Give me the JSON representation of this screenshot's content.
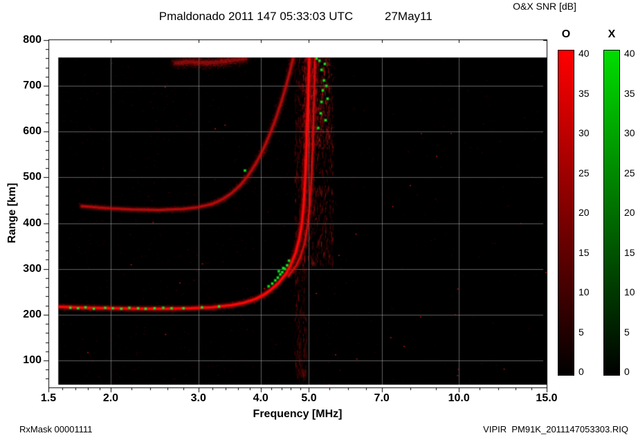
{
  "header": {
    "title": "Pmaldonado 2011 147 05:33:03 UTC",
    "date": "27May11",
    "colorbar_title": "O&X SNR [dB]"
  },
  "footer": {
    "rx_mask": "RxMask 00001111",
    "file": "VIPIR  PM91K_2011147053303.RIQ"
  },
  "chart_data": {
    "type": "heatmap",
    "title": "Pmaldonado 2011 147 05:33:03 UTC",
    "subtitle_date": "27May11",
    "xlabel": "Frequency [MHz]",
    "ylabel": "Range [km]",
    "x_scale": "log",
    "xlim": [
      1.5,
      15.0
    ],
    "ylim": [
      41,
      801
    ],
    "grid": true,
    "x_ticks": [
      "1.5",
      "2.0",
      "3.0",
      "4.0",
      "5.0",
      "7.0",
      "10.0",
      "15.0"
    ],
    "x_minor_ticks": [
      1.6,
      1.7,
      1.8,
      1.9,
      2.2,
      2.4,
      2.6,
      2.8,
      3.2,
      3.4,
      3.6,
      3.8,
      4.2,
      4.4,
      4.6,
      4.8,
      5.5,
      6.0,
      6.5,
      8.0,
      9.0,
      11.0,
      12.0,
      13.0,
      14.0
    ],
    "y_ticks": [
      "100",
      "200",
      "300",
      "400",
      "500",
      "600",
      "700",
      "800"
    ],
    "y_minor_step": 20,
    "background": "#000000",
    "data_extent": {
      "f_min": 1.57,
      "f_max": 15.0,
      "r_min": 47,
      "r_max": 762
    },
    "colorbar_title": "O&X SNR [dB]",
    "colorbars": [
      {
        "label": "O",
        "color_top": "#ff0000",
        "color_bottom": "#000000",
        "min": 0,
        "max": 40,
        "ticks": [
          "40",
          "35",
          "30",
          "25",
          "20",
          "15",
          "10",
          "5",
          "0"
        ]
      },
      {
        "label": "X",
        "color_top": "#00dd00",
        "color_bottom": "#000000",
        "min": 0,
        "max": 40,
        "ticks": [
          "40",
          "35",
          "30",
          "25",
          "20",
          "15",
          "10",
          "5",
          "0"
        ]
      }
    ],
    "noise": {
      "count": 2600,
      "hot": 30
    },
    "bands": [
      {
        "name": "rfi-stripe",
        "f": [
          4.68,
          4.95
        ],
        "r": [
          50,
          760
        ],
        "count": 500,
        "streak": 10,
        "rgb": [
          200,
          20,
          20
        ],
        "alpha": 0.3
      },
      {
        "name": "spread-f",
        "f": [
          4.9,
          5.6
        ],
        "r": [
          300,
          762
        ],
        "count": 700,
        "streak": 8,
        "rgb": [
          210,
          25,
          25
        ],
        "alpha": 0.33
      },
      {
        "name": "spread-f-top",
        "f": [
          4.85,
          5.5
        ],
        "r": [
          560,
          762
        ],
        "count": 400,
        "streak": 7,
        "rgb": [
          220,
          30,
          30
        ],
        "alpha": 0.4
      }
    ],
    "traces": [
      {
        "name": "F-layer O-mode first hop",
        "mode": "O",
        "color": [
          255,
          10,
          10
        ],
        "width": 4,
        "alpha": 1.0,
        "fuzz": 900,
        "points": [
          [
            1.58,
            217
          ],
          [
            1.8,
            215
          ],
          [
            2.0,
            214
          ],
          [
            2.3,
            213
          ],
          [
            2.6,
            213
          ],
          [
            2.9,
            214
          ],
          [
            3.2,
            216
          ],
          [
            3.5,
            221
          ],
          [
            3.7,
            226
          ],
          [
            3.9,
            234
          ],
          [
            4.05,
            243
          ],
          [
            4.2,
            255
          ],
          [
            4.35,
            270
          ],
          [
            4.5,
            290
          ],
          [
            4.6,
            310
          ],
          [
            4.7,
            335
          ],
          [
            4.78,
            365
          ],
          [
            4.84,
            400
          ],
          [
            4.88,
            440
          ],
          [
            4.91,
            490
          ],
          [
            4.94,
            550
          ],
          [
            4.96,
            610
          ],
          [
            4.98,
            670
          ],
          [
            5.0,
            730
          ],
          [
            5.01,
            762
          ]
        ]
      },
      {
        "name": "F-layer O-mode outer branch",
        "mode": "O",
        "color": [
          230,
          15,
          15
        ],
        "width": 3,
        "alpha": 0.8,
        "fuzz": 500,
        "points": [
          [
            4.55,
            285
          ],
          [
            4.7,
            305
          ],
          [
            4.8,
            325
          ],
          [
            4.9,
            355
          ],
          [
            4.97,
            395
          ],
          [
            5.02,
            440
          ],
          [
            5.06,
            500
          ],
          [
            5.09,
            570
          ],
          [
            5.11,
            640
          ],
          [
            5.13,
            710
          ],
          [
            5.14,
            762
          ]
        ]
      },
      {
        "name": "second hop trace",
        "mode": "O",
        "color": [
          210,
          15,
          15
        ],
        "width": 4,
        "alpha": 0.75,
        "fuzz": 900,
        "points": [
          [
            1.75,
            437
          ],
          [
            1.95,
            433
          ],
          [
            2.2,
            430
          ],
          [
            2.5,
            429
          ],
          [
            2.8,
            431
          ],
          [
            3.0,
            435
          ],
          [
            3.2,
            442
          ],
          [
            3.35,
            452
          ],
          [
            3.5,
            466
          ],
          [
            3.65,
            484
          ],
          [
            3.78,
            505
          ],
          [
            3.9,
            528
          ],
          [
            4.0,
            550
          ],
          [
            4.1,
            575
          ],
          [
            4.2,
            602
          ],
          [
            4.3,
            632
          ],
          [
            4.4,
            665
          ],
          [
            4.5,
            700
          ],
          [
            4.6,
            740
          ],
          [
            4.65,
            762
          ]
        ]
      },
      {
        "name": "top diffuse patch",
        "mode": "O",
        "color": [
          200,
          20,
          20
        ],
        "width": 7,
        "alpha": 0.45,
        "fuzz": 700,
        "points": [
          [
            2.7,
            750
          ],
          [
            2.9,
            753
          ],
          [
            3.1,
            750
          ],
          [
            3.3,
            752
          ],
          [
            3.5,
            756
          ],
          [
            3.72,
            760
          ]
        ]
      }
    ],
    "x_mode_speckles": [
      [
        1.66,
        215
      ],
      [
        1.72,
        214
      ],
      [
        1.78,
        216
      ],
      [
        1.85,
        213
      ],
      [
        1.95,
        215
      ],
      [
        2.02,
        214
      ],
      [
        2.1,
        213
      ],
      [
        2.18,
        215
      ],
      [
        2.27,
        214
      ],
      [
        2.35,
        213
      ],
      [
        2.45,
        214
      ],
      [
        2.55,
        215
      ],
      [
        2.65,
        214
      ],
      [
        2.8,
        214
      ],
      [
        3.05,
        216
      ],
      [
        3.3,
        218
      ],
      [
        3.72,
        515
      ],
      [
        4.15,
        262
      ],
      [
        4.22,
        268
      ],
      [
        4.28,
        275
      ],
      [
        4.33,
        281
      ],
      [
        4.38,
        288
      ],
      [
        4.42,
        293
      ],
      [
        4.47,
        300
      ],
      [
        4.52,
        308
      ],
      [
        4.35,
        295
      ],
      [
        4.44,
        302
      ],
      [
        4.56,
        318
      ],
      [
        5.18,
        760
      ],
      [
        5.22,
        608
      ],
      [
        5.25,
        755
      ],
      [
        5.28,
        640
      ],
      [
        5.3,
        665
      ],
      [
        5.3,
        735
      ],
      [
        5.33,
        690
      ],
      [
        5.36,
        712
      ],
      [
        5.38,
        748
      ],
      [
        5.42,
        700
      ],
      [
        5.45,
        672
      ],
      [
        5.4,
        625
      ]
    ]
  }
}
